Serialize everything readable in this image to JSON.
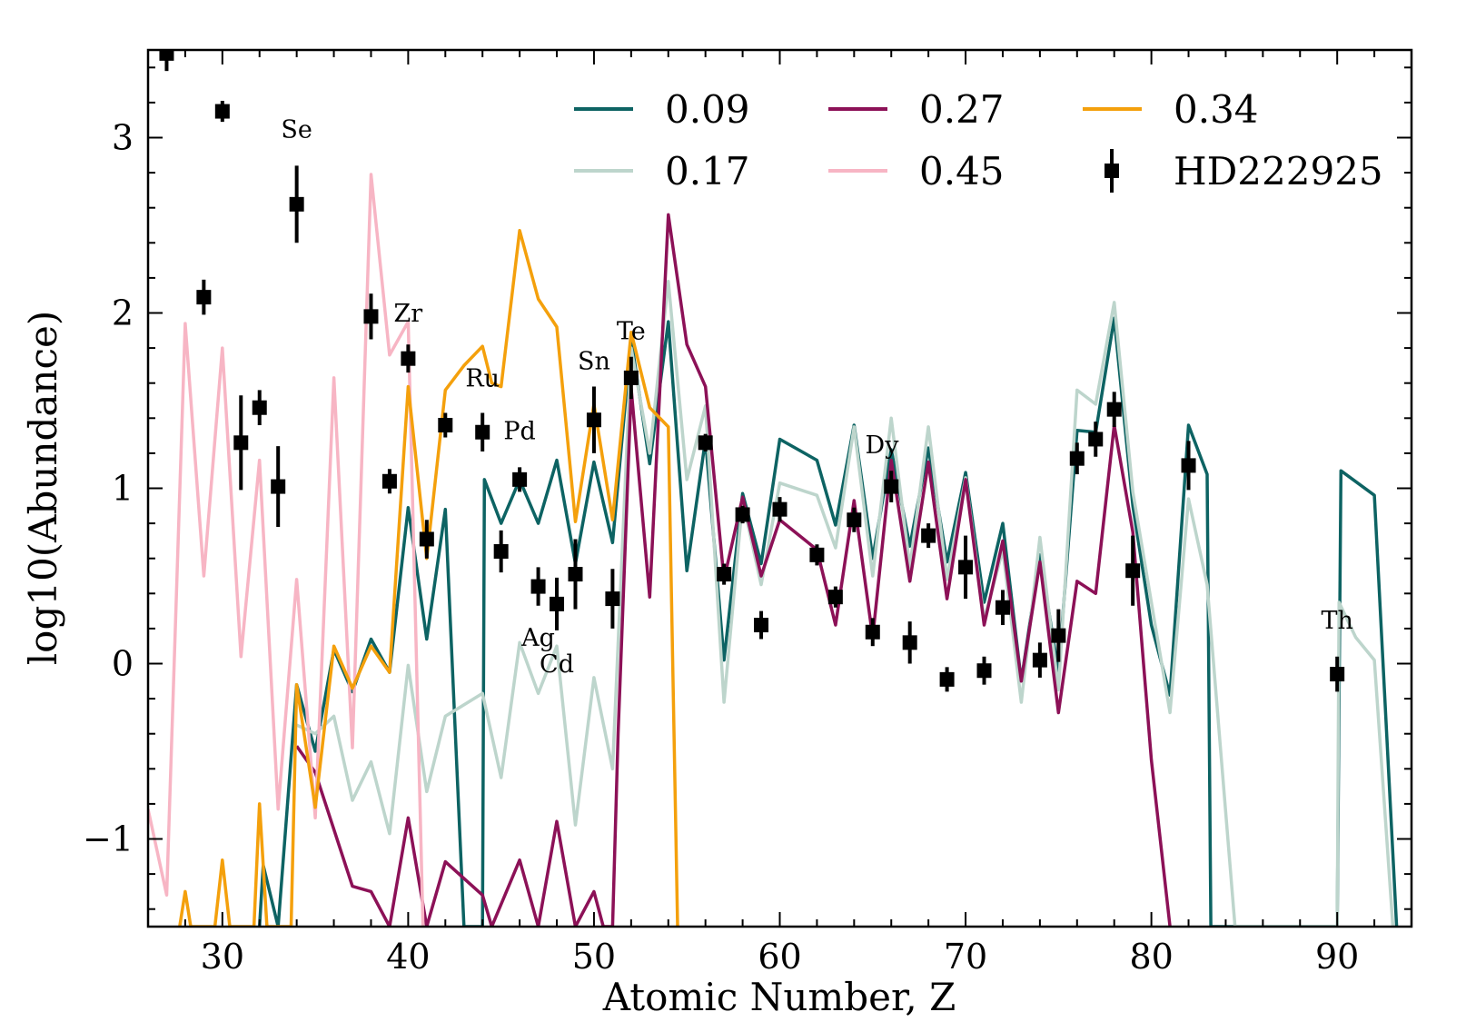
{
  "chart_data": {
    "type": "line",
    "xlabel": "Atomic Number, Z",
    "ylabel": "log10(Abundance)",
    "xlim": [
      26,
      94
    ],
    "ylim": [
      -1.5,
      3.5
    ],
    "xticks": [
      30,
      40,
      50,
      60,
      70,
      80,
      90
    ],
    "yticks": [
      -1,
      0,
      1,
      2,
      3
    ],
    "legend_position": "top-right",
    "grid": false,
    "series": [
      {
        "name": "0.09",
        "color": "#0d6363",
        "points": [
          [
            32,
            -1.5
          ],
          [
            32.2,
            -1.15
          ],
          [
            33,
            -1.5
          ],
          [
            34,
            -0.12
          ],
          [
            35,
            -0.5
          ],
          [
            36,
            0.08
          ],
          [
            37,
            -0.16
          ],
          [
            38,
            0.14
          ],
          [
            39,
            -0.05
          ],
          [
            40,
            0.89
          ],
          [
            41,
            0.14
          ],
          [
            42,
            0.88
          ],
          [
            43,
            -1.5
          ],
          [
            44,
            -1.5
          ],
          [
            44.1,
            1.05
          ],
          [
            45,
            0.8
          ],
          [
            46,
            1.05
          ],
          [
            47,
            0.8
          ],
          [
            48,
            1.16
          ],
          [
            49,
            0.57
          ],
          [
            50,
            1.15
          ],
          [
            51,
            0.69
          ],
          [
            52,
            1.85
          ],
          [
            53,
            1.14
          ],
          [
            54,
            1.95
          ],
          [
            55,
            0.53
          ],
          [
            56,
            1.28
          ],
          [
            57,
            0.02
          ],
          [
            58,
            0.97
          ],
          [
            59,
            0.57
          ],
          [
            60,
            1.28
          ],
          [
            62,
            1.16
          ],
          [
            63,
            0.79
          ],
          [
            64,
            1.36
          ],
          [
            65,
            0.6
          ],
          [
            66,
            1.22
          ],
          [
            67,
            0.67
          ],
          [
            68,
            1.23
          ],
          [
            69,
            0.58
          ],
          [
            70,
            1.09
          ],
          [
            71,
            0.35
          ],
          [
            72,
            0.8
          ],
          [
            73,
            -0.1
          ],
          [
            74,
            0.62
          ],
          [
            75,
            -0.05
          ],
          [
            76,
            1.33
          ],
          [
            77,
            1.32
          ],
          [
            78,
            1.97
          ],
          [
            79,
            0.9
          ],
          [
            80,
            0.22
          ],
          [
            81,
            -0.18
          ],
          [
            82,
            1.36
          ],
          [
            83,
            1.08
          ],
          [
            83.2,
            -1.5
          ],
          [
            90,
            -1.5
          ],
          [
            90.2,
            1.1
          ],
          [
            92,
            0.96
          ],
          [
            93.2,
            -1.5
          ]
        ]
      },
      {
        "name": "0.17",
        "color": "#bdd5cc",
        "points": [
          [
            34,
            -0.35
          ],
          [
            35,
            -0.4
          ],
          [
            36,
            -0.3
          ],
          [
            37,
            -0.78
          ],
          [
            38,
            -0.56
          ],
          [
            39,
            -0.97
          ],
          [
            40,
            -0.01
          ],
          [
            41,
            -0.73
          ],
          [
            42,
            -0.3
          ],
          [
            44,
            -0.17
          ],
          [
            45,
            -0.65
          ],
          [
            46,
            0.12
          ],
          [
            47,
            -0.17
          ],
          [
            48,
            0.1
          ],
          [
            49,
            -0.92
          ],
          [
            50,
            -0.08
          ],
          [
            51,
            -0.6
          ],
          [
            52,
            1.8
          ],
          [
            53,
            1.2
          ],
          [
            54,
            2.18
          ],
          [
            55,
            1.05
          ],
          [
            56,
            1.47
          ],
          [
            57,
            -0.22
          ],
          [
            58,
            0.93
          ],
          [
            59,
            0.45
          ],
          [
            60,
            1.03
          ],
          [
            62,
            0.96
          ],
          [
            63,
            0.66
          ],
          [
            64,
            1.35
          ],
          [
            65,
            0.5
          ],
          [
            66,
            1.4
          ],
          [
            67,
            0.55
          ],
          [
            68,
            1.35
          ],
          [
            69,
            0.48
          ],
          [
            70,
            1.06
          ],
          [
            71,
            0.25
          ],
          [
            72,
            0.65
          ],
          [
            73,
            -0.22
          ],
          [
            74,
            0.72
          ],
          [
            75,
            -0.15
          ],
          [
            76,
            1.56
          ],
          [
            77,
            1.48
          ],
          [
            78,
            2.06
          ],
          [
            79,
            0.98
          ],
          [
            80,
            0.35
          ],
          [
            81,
            -0.28
          ],
          [
            82,
            0.94
          ],
          [
            83,
            0.45
          ],
          [
            84.5,
            -1.5
          ],
          [
            90,
            -1.5
          ],
          [
            90.1,
            0.35
          ],
          [
            91,
            0.15
          ],
          [
            92,
            0.02
          ],
          [
            93,
            -1.5
          ]
        ]
      },
      {
        "name": "0.27",
        "color": "#8c1157",
        "points": [
          [
            34,
            -0.47
          ],
          [
            35,
            -0.62
          ],
          [
            37,
            -1.27
          ],
          [
            38,
            -1.3
          ],
          [
            39,
            -1.5
          ],
          [
            40,
            -0.88
          ],
          [
            41,
            -1.5
          ],
          [
            42,
            -1.13
          ],
          [
            44,
            -1.32
          ],
          [
            44.5,
            -1.5
          ],
          [
            46,
            -1.12
          ],
          [
            47,
            -1.5
          ],
          [
            48,
            -0.9
          ],
          [
            49,
            -1.5
          ],
          [
            50,
            -1.3
          ],
          [
            50.5,
            -1.5
          ],
          [
            51,
            -1.5
          ],
          [
            51.3,
            -0.4
          ],
          [
            52,
            1.57
          ],
          [
            53,
            0.38
          ],
          [
            54,
            2.56
          ],
          [
            55,
            1.82
          ],
          [
            56,
            1.58
          ],
          [
            57,
            0.48
          ],
          [
            58,
            0.95
          ],
          [
            59,
            0.5
          ],
          [
            60,
            0.82
          ],
          [
            62,
            0.65
          ],
          [
            63,
            0.22
          ],
          [
            64,
            0.93
          ],
          [
            65,
            0.15
          ],
          [
            66,
            1.16
          ],
          [
            67,
            0.47
          ],
          [
            68,
            1.15
          ],
          [
            69,
            0.37
          ],
          [
            70,
            1.05
          ],
          [
            71,
            0.22
          ],
          [
            72,
            0.7
          ],
          [
            73,
            -0.1
          ],
          [
            74,
            0.58
          ],
          [
            75,
            -0.28
          ],
          [
            76,
            0.47
          ],
          [
            77,
            0.4
          ],
          [
            78,
            1.36
          ],
          [
            79,
            0.75
          ],
          [
            80,
            -0.55
          ],
          [
            81,
            -1.5
          ]
        ]
      },
      {
        "name": "0.45",
        "color": "#f7b5c4",
        "points": [
          [
            26,
            -0.83
          ],
          [
            27,
            -1.32
          ],
          [
            28,
            1.94
          ],
          [
            29,
            0.5
          ],
          [
            30,
            1.8
          ],
          [
            31,
            0.04
          ],
          [
            32,
            1.16
          ],
          [
            33,
            -0.83
          ],
          [
            34,
            0.48
          ],
          [
            35,
            -0.88
          ],
          [
            36,
            1.63
          ],
          [
            37,
            -0.48
          ],
          [
            38,
            2.79
          ],
          [
            39,
            1.76
          ],
          [
            40,
            1.95
          ],
          [
            40.8,
            -1.5
          ]
        ]
      },
      {
        "name": "0.34",
        "color": "#f4a00c",
        "points": [
          [
            27.7,
            -1.5
          ],
          [
            28,
            -1.3
          ],
          [
            28.3,
            -1.5
          ],
          [
            29.6,
            -1.5
          ],
          [
            30,
            -1.12
          ],
          [
            30.4,
            -1.5
          ],
          [
            31.7,
            -1.5
          ],
          [
            32,
            -0.8
          ],
          [
            32.4,
            -1.5
          ],
          [
            33.7,
            -1.5
          ],
          [
            34,
            -0.12
          ],
          [
            35,
            -0.82
          ],
          [
            36,
            0.1
          ],
          [
            37,
            -0.14
          ],
          [
            38,
            0.1
          ],
          [
            39,
            -0.05
          ],
          [
            40,
            1.58
          ],
          [
            41,
            0.6
          ],
          [
            42,
            1.56
          ],
          [
            43,
            1.7
          ],
          [
            44,
            1.81
          ],
          [
            44.5,
            1.6
          ],
          [
            45,
            1.58
          ],
          [
            46,
            2.47
          ],
          [
            47,
            2.08
          ],
          [
            48,
            1.92
          ],
          [
            49,
            0.81
          ],
          [
            50,
            1.48
          ],
          [
            51,
            0.82
          ],
          [
            52,
            1.89
          ],
          [
            53,
            1.46
          ],
          [
            54,
            1.35
          ],
          [
            54.5,
            -1.5
          ]
        ]
      },
      {
        "name": "HD222925",
        "color": "#000000",
        "points": [
          [
            27,
            3.48,
            0.1
          ],
          [
            29,
            2.09,
            0.1
          ],
          [
            30,
            3.15,
            0.06
          ],
          [
            31,
            1.26,
            0.27
          ],
          [
            32,
            1.46,
            0.1
          ],
          [
            33,
            1.01,
            0.23
          ],
          [
            34,
            2.62,
            0.22
          ],
          [
            38,
            1.98,
            0.13
          ],
          [
            39,
            1.04,
            0.07
          ],
          [
            40,
            1.74,
            0.08
          ],
          [
            41,
            0.71,
            0.11
          ],
          [
            42,
            1.36,
            0.07
          ],
          [
            44,
            1.32,
            0.11
          ],
          [
            45,
            0.64,
            0.12
          ],
          [
            46,
            1.05,
            0.07
          ],
          [
            47,
            0.44,
            0.11
          ],
          [
            48,
            0.34,
            0.15
          ],
          [
            49,
            0.51,
            0.2
          ],
          [
            50,
            1.39,
            0.19
          ],
          [
            51,
            0.37,
            0.17
          ],
          [
            52,
            1.63,
            0.12
          ],
          [
            56,
            1.26,
            0.05
          ],
          [
            57,
            0.51,
            0.06
          ],
          [
            58,
            0.85,
            0.05
          ],
          [
            59,
            0.22,
            0.08
          ],
          [
            60,
            0.88,
            0.07
          ],
          [
            62,
            0.62,
            0.06
          ],
          [
            63,
            0.38,
            0.06
          ],
          [
            64,
            0.82,
            0.07
          ],
          [
            65,
            0.18,
            0.08
          ],
          [
            66,
            1.01,
            0.09
          ],
          [
            67,
            0.12,
            0.12
          ],
          [
            68,
            0.73,
            0.07
          ],
          [
            69,
            -0.09,
            0.07
          ],
          [
            70,
            0.55,
            0.18
          ],
          [
            71,
            -0.04,
            0.08
          ],
          [
            72,
            0.32,
            0.1
          ],
          [
            74,
            0.02,
            0.1
          ],
          [
            75,
            0.16,
            0.15
          ],
          [
            76,
            1.17,
            0.09
          ],
          [
            77,
            1.28,
            0.1
          ],
          [
            78,
            1.45,
            0.1
          ],
          [
            79,
            0.53,
            0.2
          ],
          [
            82,
            1.13,
            0.14
          ],
          [
            90,
            -0.06,
            0.1
          ]
        ]
      }
    ],
    "annotations": [
      {
        "text": "Se",
        "x": 34,
        "y": 3.0
      },
      {
        "text": "Zr",
        "x": 40,
        "y": 1.95
      },
      {
        "text": "Ru",
        "x": 44,
        "y": 1.58
      },
      {
        "text": "Pd",
        "x": 46,
        "y": 1.28
      },
      {
        "text": "Sn",
        "x": 50,
        "y": 1.68
      },
      {
        "text": "Te",
        "x": 52,
        "y": 1.85
      },
      {
        "text": "Ag",
        "x": 47,
        "y": 0.1
      },
      {
        "text": "Cd",
        "x": 48,
        "y": -0.05
      },
      {
        "text": "Dy",
        "x": 65.5,
        "y": 1.2
      },
      {
        "text": "Th",
        "x": 90,
        "y": 0.2
      }
    ]
  }
}
